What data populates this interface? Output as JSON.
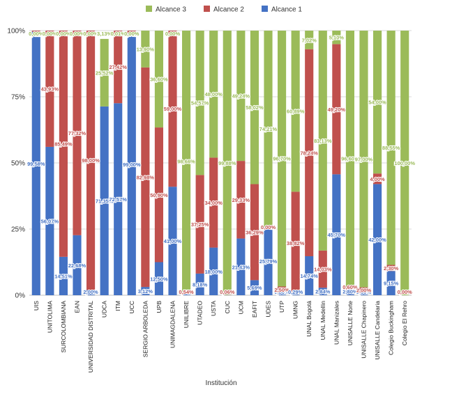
{
  "chart_data": {
    "type": "bar",
    "stacked": true,
    "percent_stacked": true,
    "title": "",
    "xlabel": "Institución",
    "ylabel": "",
    "ylim": [
      0,
      100
    ],
    "yticks": [
      "0%",
      "25%",
      "50%",
      "75%",
      "100%"
    ],
    "grid": true,
    "legend_position": "top",
    "categories": [
      "UIS",
      "UNITOLIMA",
      "SURCOLOMBIANA",
      "EAN",
      "UNIVERSIDAD DISTRITAL",
      "UDCA",
      "ITM",
      "UCC",
      "SERGIO ARBOLEDA",
      "UPB",
      "UNIMAGDALENA",
      "UNILIBRE",
      "UTADEO",
      "USTA",
      "CUC",
      "UCM",
      "EAFIT",
      "UDES",
      "UTP",
      "UMNG",
      "UNAL Bogotá",
      "UNAL Medellin",
      "UNAL Manizales",
      "UNISALLE Norte",
      "UNISALLE Chapinero",
      "UNISALLE Candelaria",
      "Colegio Buckingham",
      "Colegio El Rehro"
    ],
    "series": [
      {
        "name": "Alcance 1",
        "color": "#4472C4",
        "values": [
          99.58,
          56.07,
          14.51,
          22.68,
          2.0,
          71.35,
          72.57,
          99.0,
          3.12,
          12.5,
          41.0,
          0.8,
          8.18,
          18.0,
          0.06,
          21.43,
          5.69,
          25.79,
          0.8,
          0.29,
          14.74,
          2.84,
          45.7,
          2.8,
          1.0,
          42.0,
          9.15,
          0.0
        ],
        "labels": [
          "99,58%",
          "56,07%",
          "14,51%",
          "22,68%",
          "2,00%",
          "71,35%",
          "72,57%",
          "99,00%",
          "3,12%",
          "12,50%",
          "41,00%",
          "0,80%",
          "8,18%",
          "18,00%",
          "0,06%",
          "21,43%",
          "5,69%",
          "25,79%",
          "0,80%",
          "0,29%",
          "14,74%",
          "2,84%",
          "45,70%",
          "2,80%",
          "1,00%",
          "42,00%",
          "9,15%",
          "0,00%"
        ]
      },
      {
        "name": "Alcance 2",
        "color": "#C0504D",
        "values": [
          0.42,
          43.93,
          85.49,
          77.32,
          98.0,
          0.0,
          27.42,
          1.0,
          82.98,
          50.9,
          59.0,
          0.54,
          37.25,
          34.0,
          0.06,
          29.33,
          36.29,
          0.0,
          2.5,
          38.82,
          78.24,
          14.03,
          49.2,
          0.6,
          2.0,
          4.0,
          2.3,
          0.0
        ],
        "labels": [
          "0,42%",
          "43,93%",
          "85,49%",
          "77,32%",
          "98,00%",
          "",
          "27,42%",
          "1,00%",
          "82,98%",
          "50,90%",
          "59,00%",
          "0,54%",
          "37,25%",
          "34,00%",
          "0,06%",
          "29,33%",
          "36,29%",
          "0,00%",
          "2,50%",
          "38,82%",
          "78,24%",
          "14,03%",
          "49,20%",
          "0,60%",
          "2,00%",
          "4,00%",
          "2,30%",
          "0,00%"
        ]
      },
      {
        "name": "Alcance 3",
        "color": "#9BBB59",
        "values": [
          0.0,
          0.0,
          0.0,
          0.0,
          0.0,
          25.52,
          0.01,
          0.0,
          13.9,
          36.6,
          0.0,
          98.66,
          54.57,
          48.0,
          99.88,
          49.24,
          58.02,
          74.21,
          96.7,
          60.89,
          7.02,
          83.13,
          5.1,
          96.6,
          97.0,
          54.0,
          88.55,
          100.0
        ],
        "labels": [
          "",
          "",
          "",
          "",
          "",
          "25,52%",
          "",
          "",
          "13,90%",
          "36,60%",
          "",
          "98,66%",
          "54,57%",
          "48,00%",
          "99,88%",
          "49,24%",
          "58,02%",
          "74,21%",
          "96,70%",
          "60,89%",
          "7,02%",
          "83,13%",
          "5,10%",
          "96,60%",
          "97,00%",
          "54,00%",
          "88,55%",
          "100,00%"
        ]
      }
    ],
    "top_labels": [
      "0,00%",
      "0,00%",
      "0,00%",
      "0,00%",
      "0,00%",
      "3,13%",
      "0,01%",
      "0,00%",
      "",
      "",
      "0,00%",
      "",
      "",
      "",
      "",
      "",
      "",
      "",
      "",
      "",
      "",
      "",
      "",
      "",
      "",
      "",
      "",
      ""
    ]
  }
}
